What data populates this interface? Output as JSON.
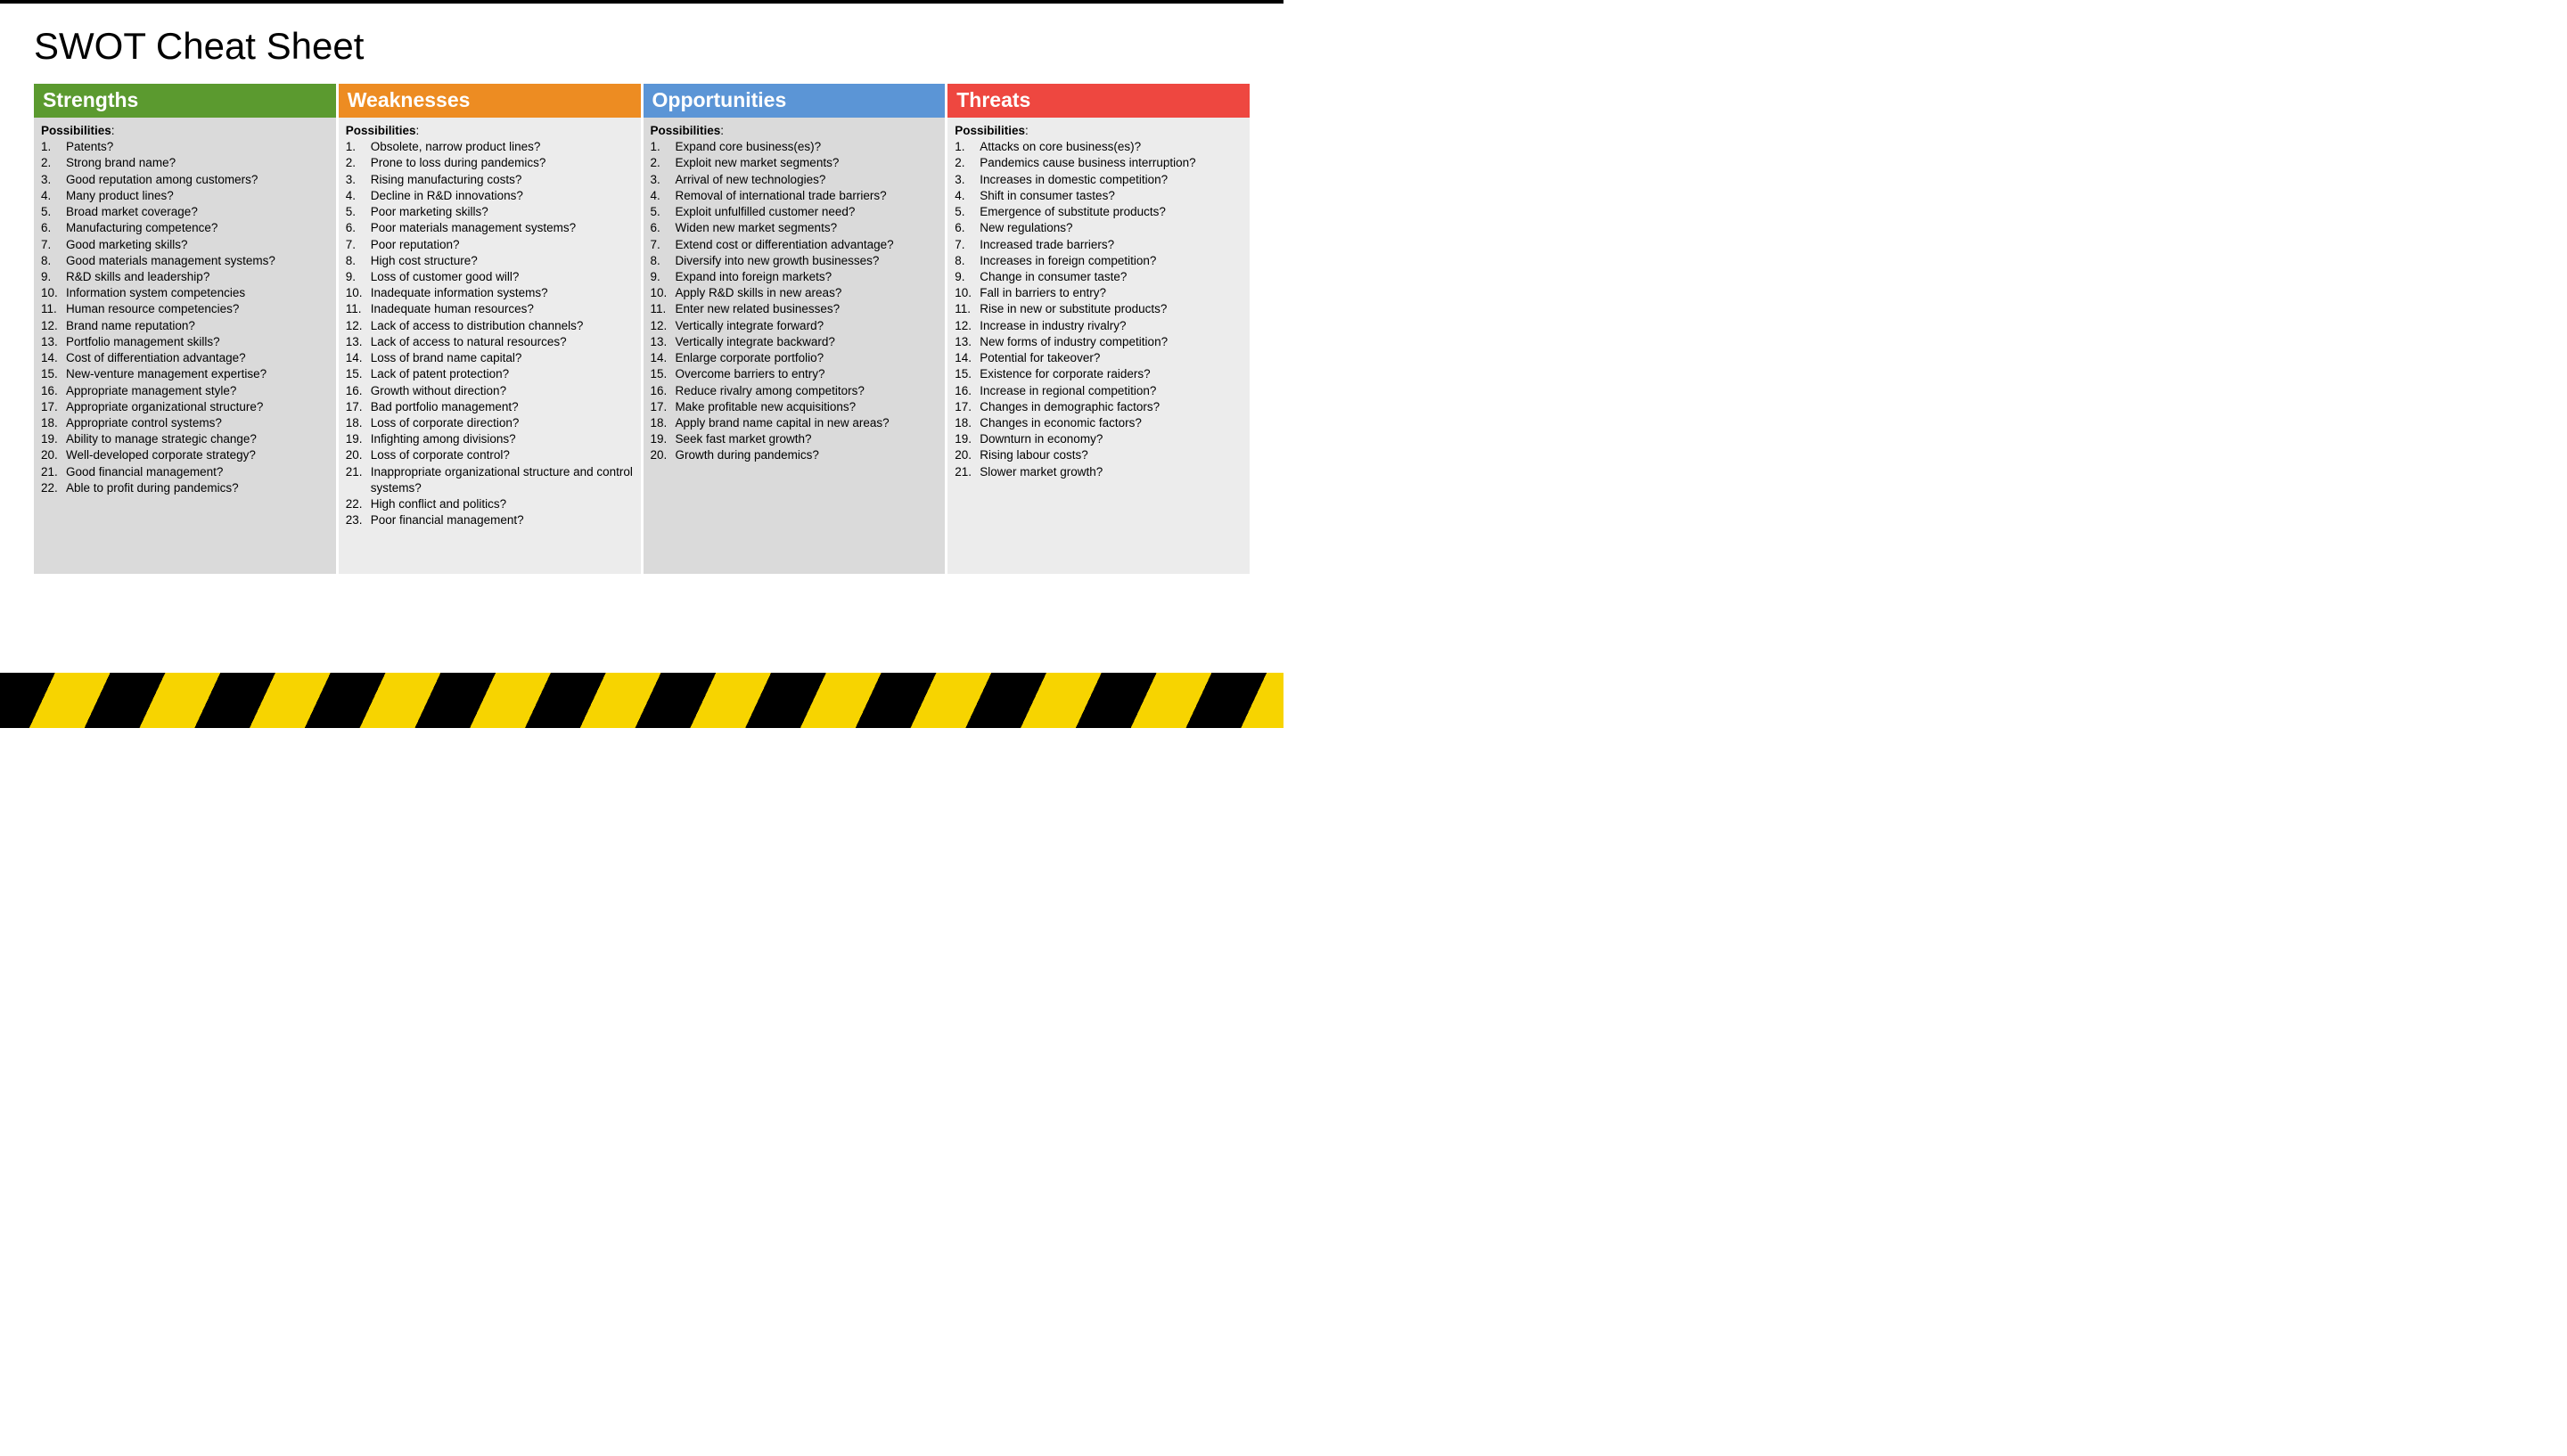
{
  "title": "SWOT Cheat Sheet",
  "possibilities_label": "Possibilities",
  "colors": {
    "strengths": "#5b9a2f",
    "weaknesses": "#ed8c22",
    "opportunities": "#5b95d6",
    "threats": "#ee4740",
    "body_bg_dark": "#dadada",
    "body_bg_light": "#ececec",
    "hazard_yellow": "#f7d400",
    "hazard_black": "#000000"
  },
  "columns": [
    {
      "key": "strengths",
      "header": "Strengths",
      "items": [
        "Patents?",
        "Strong brand name?",
        "Good reputation among customers?",
        "Many product lines?",
        "Broad market coverage?",
        "Manufacturing competence?",
        "Good marketing skills?",
        "Good materials management systems?",
        "R&D skills and leadership?",
        "Information system competencies",
        "Human resource competencies?",
        "Brand name reputation?",
        "Portfolio management skills?",
        "Cost of differentiation advantage?",
        "New-venture management expertise?",
        "Appropriate management style?",
        "Appropriate organizational structure?",
        "Appropriate control systems?",
        "Ability to manage strategic change?",
        "Well-developed corporate strategy?",
        "Good financial management?",
        "Able to profit during pandemics?"
      ]
    },
    {
      "key": "weaknesses",
      "header": "Weaknesses",
      "items": [
        "Obsolete, narrow product lines?",
        "Prone to loss during pandemics?",
        "Rising manufacturing costs?",
        "Decline in R&D innovations?",
        "Poor marketing skills?",
        "Poor materials management systems?",
        "Poor reputation?",
        "High cost structure?",
        "Loss of customer good will?",
        "Inadequate information systems?",
        "Inadequate human resources?",
        "Lack of access to distribution channels?",
        "Lack of access to natural resources?",
        "Loss of brand name capital?",
        "Lack of patent protection?",
        "Growth without direction?",
        "Bad portfolio management?",
        "Loss of corporate direction?",
        "Infighting among divisions?",
        "Loss of corporate control?",
        "Inappropriate organizational structure and control systems?",
        "High conflict and politics?",
        "Poor financial management?"
      ]
    },
    {
      "key": "opportunities",
      "header": "Opportunities",
      "items": [
        "Expand core business(es)?",
        "Exploit new market segments?",
        "Arrival of new technologies?",
        "Removal of international trade barriers?",
        "Exploit unfulfilled customer need?",
        "Widen new market segments?",
        "Extend cost or differentiation advantage?",
        "Diversify into new growth businesses?",
        "Expand into foreign markets?",
        "Apply R&D skills in new areas?",
        "Enter new related businesses?",
        "Vertically integrate forward?",
        "Vertically integrate backward?",
        "Enlarge corporate portfolio?",
        "Overcome barriers to entry?",
        "Reduce rivalry among competitors?",
        "Make profitable new acquisitions?",
        "Apply brand name capital in new areas?",
        "Seek fast market growth?",
        "Growth during pandemics?"
      ]
    },
    {
      "key": "threats",
      "header": "Threats",
      "items": [
        "Attacks on core business(es)?",
        "Pandemics cause business interruption?",
        "Increases in domestic competition?",
        "Shift in consumer tastes?",
        "Emergence of substitute products?",
        "New regulations?",
        "Increased trade barriers?",
        "Increases in foreign competition?",
        "Change in consumer taste?",
        "Fall in barriers to entry?",
        "Rise in new or substitute products?",
        "Increase in industry rivalry?",
        "New forms of industry competition?",
        "Potential for takeover?",
        "Existence for corporate raiders?",
        "Increase in regional competition?",
        "Changes in demographic factors?",
        "Changes in economic factors?",
        "Downturn in economy?",
        "Rising labour costs?",
        "Slower market growth?"
      ]
    }
  ]
}
